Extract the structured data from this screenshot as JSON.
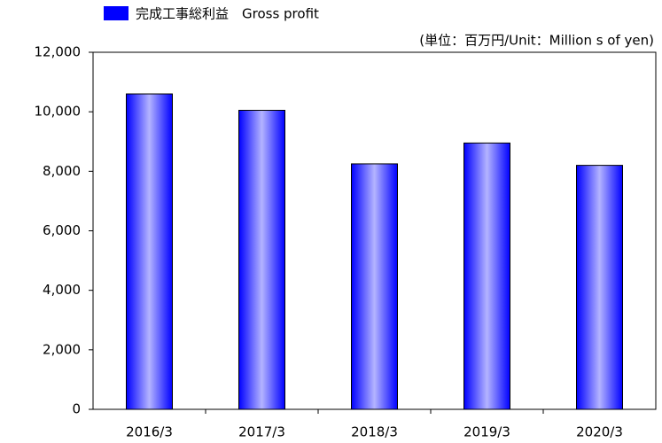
{
  "chart_data": {
    "type": "bar",
    "legend_label": "完成工事総利益　Gross profit",
    "unit_note": "(単位：百万円/Unit：Million s  of yen)",
    "categories": [
      "2016/3",
      "2017/3",
      "2018/3",
      "2019/3",
      "2020/3"
    ],
    "values": [
      10600,
      10050,
      8250,
      8950,
      8200
    ],
    "color": "#0000ff",
    "ylim": [
      0,
      12000
    ],
    "yticks": [
      0,
      {
        "value": 2000,
        "label": "2,000"
      },
      {
        "value": 4000,
        "label": "4,000"
      },
      {
        "value": 6000,
        "label": "6,000"
      },
      {
        "value": 8000,
        "label": "8,000"
      },
      {
        "value": 10000,
        "label": "10,000"
      },
      {
        "value": 12000,
        "label": "12,000"
      }
    ],
    "grid": false,
    "legend": "top-left"
  }
}
